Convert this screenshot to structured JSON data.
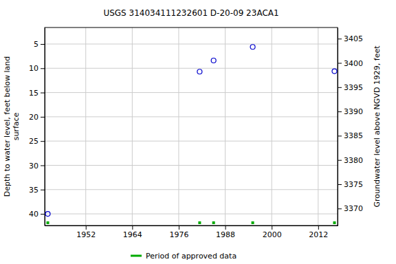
{
  "chart_data": {
    "type": "scatter",
    "title": "USGS 314034111232601 D-20-09 23ACA1",
    "ylabel": [
      "Depth to water level, feet below land",
      "surface"
    ],
    "y2label": "Groundwater level above NGVD 1929, feet",
    "series": [
      {
        "x": [
          1942.2,
          1981.4,
          1985.0,
          1995.1,
          2016.2
        ],
        "values": [
          40.0,
          10.7,
          8.4,
          5.6,
          10.6
        ],
        "color": "#0000cc",
        "marker": "circle-open"
      }
    ],
    "periods": {
      "name": "Period of approved data",
      "color": "#00aa00",
      "x": [
        1942.2,
        1981.4,
        1985.0,
        1995.1,
        2016.2
      ]
    },
    "xlim": [
      1941.4,
      2017
    ],
    "xticks": [
      1952,
      1964,
      1976,
      1988,
      2000,
      2012
    ],
    "ylim": [
      1.6,
      42.4
    ],
    "yticks": [
      5,
      10,
      15,
      20,
      25,
      30,
      35,
      40
    ],
    "y2lim": [
      3407.3,
      3366.5
    ],
    "y2ticks": [
      3370,
      3375,
      3380,
      3385,
      3390,
      3395,
      3400,
      3405
    ],
    "grid": true,
    "legend": "bottom"
  }
}
